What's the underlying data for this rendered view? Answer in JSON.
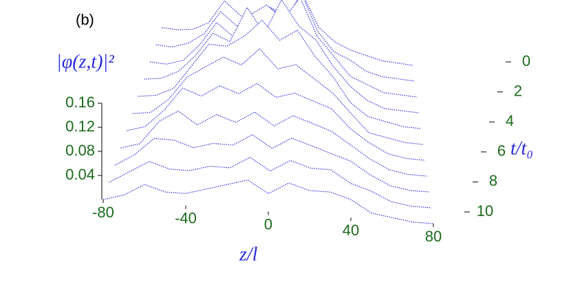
{
  "chart_data": {
    "type": "surface3d",
    "panel_label": "(b)",
    "value_label": "|φ(z,t)|²",
    "x_label": "z/l",
    "y_label": "t/t₀",
    "color": "#3030e0",
    "highlight_color": "#e040c0",
    "z": [
      -80,
      -70,
      -60,
      -50,
      -40,
      -30,
      -20,
      -10,
      0,
      10,
      20,
      30,
      40,
      50,
      60,
      70,
      80
    ],
    "t": [
      0,
      1,
      2,
      3,
      4,
      5,
      6,
      7,
      8,
      9,
      10
    ],
    "values": [
      [
        0,
        0,
        0.005,
        0.02,
        0.06,
        0.04,
        0.03,
        0.06,
        0.05,
        0.09,
        0.04,
        0.02,
        0.01,
        0.005,
        0,
        0,
        0
      ],
      [
        0,
        0,
        0.01,
        0.03,
        0.07,
        0.05,
        0.06,
        0.09,
        0.07,
        0.12,
        0.06,
        0.03,
        0.02,
        0.005,
        0,
        0,
        0
      ],
      [
        0,
        0,
        0.01,
        0.04,
        0.08,
        0.06,
        0.1,
        0.12,
        0.1,
        0.14,
        0.08,
        0.05,
        0.02,
        0.01,
        0,
        0,
        0
      ],
      [
        0,
        0.005,
        0.02,
        0.05,
        0.09,
        0.08,
        0.14,
        0.1,
        0.16,
        0.12,
        0.1,
        0.06,
        0.03,
        0.01,
        0,
        0,
        0
      ],
      [
        0,
        0.005,
        0.02,
        0.06,
        0.1,
        0.1,
        0.12,
        0.15,
        0.12,
        0.14,
        0.1,
        0.07,
        0.03,
        0.01,
        0.005,
        0,
        0
      ],
      [
        0,
        0.005,
        0.03,
        0.07,
        0.09,
        0.11,
        0.1,
        0.13,
        0.1,
        0.11,
        0.09,
        0.07,
        0.04,
        0.01,
        0.005,
        0,
        0
      ],
      [
        0,
        0.01,
        0.04,
        0.08,
        0.07,
        0.09,
        0.08,
        0.1,
        0.08,
        0.09,
        0.08,
        0.07,
        0.04,
        0.02,
        0.005,
        0,
        0
      ],
      [
        0,
        0.01,
        0.05,
        0.07,
        0.05,
        0.07,
        0.06,
        0.08,
        0.06,
        0.08,
        0.07,
        0.06,
        0.04,
        0.02,
        0.005,
        0,
        0
      ],
      [
        0,
        0.02,
        0.05,
        0.05,
        0.04,
        0.05,
        0.05,
        0.07,
        0.05,
        0.07,
        0.06,
        0.05,
        0.04,
        0.02,
        0.005,
        0,
        0
      ],
      [
        0,
        0.02,
        0.04,
        0.03,
        0.03,
        0.04,
        0.04,
        0.06,
        0.04,
        0.06,
        0.05,
        0.05,
        0.03,
        0.02,
        0.005,
        0,
        0
      ],
      [
        0,
        0.01,
        0.03,
        0.02,
        0.02,
        0.03,
        0.04,
        0.05,
        0.03,
        0.05,
        0.04,
        0.04,
        0.03,
        0.01,
        0.005,
        0,
        0
      ]
    ],
    "zlim": [
      -80,
      80
    ],
    "zticks": [
      -80,
      -40,
      0,
      40,
      80
    ],
    "tlim": [
      0,
      10
    ],
    "tticks": [
      0,
      2,
      4,
      6,
      8,
      10
    ],
    "vlim": [
      0,
      0.16
    ],
    "vticks": [
      0.04,
      0.08,
      0.12,
      0.16
    ]
  }
}
